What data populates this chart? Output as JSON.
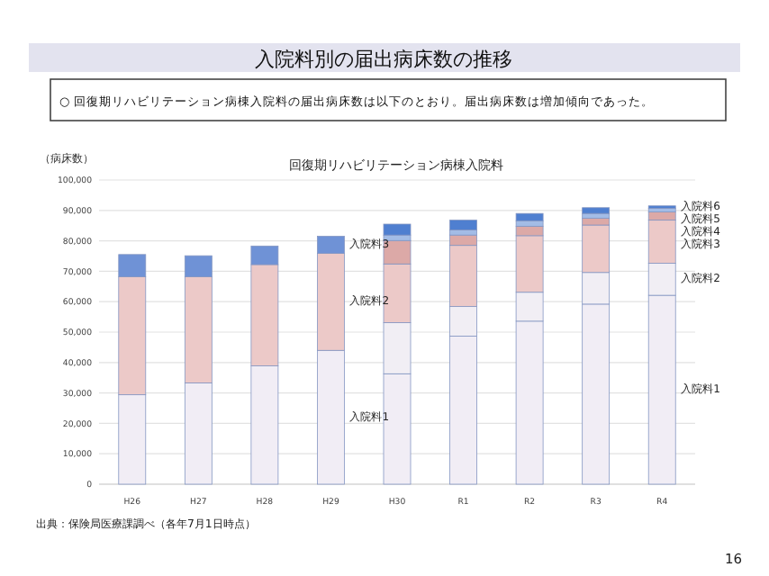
{
  "chart_data": {
    "type": "bar",
    "stacked": true,
    "title": "回復期リハビリテーション病棟入院料",
    "ylabel": "（病床数）",
    "categories": [
      "H26",
      "H27",
      "H28",
      "H29",
      "H30",
      "R1",
      "R2",
      "R3",
      "R4"
    ],
    "ylim": [
      0,
      100000
    ],
    "yticks": [
      {
        "value": 0,
        "label": "0"
      },
      {
        "value": 10000,
        "label": "10,000"
      },
      {
        "value": 20000,
        "label": "20,000"
      },
      {
        "value": 30000,
        "label": "30,000"
      },
      {
        "value": 40000,
        "label": "40,000"
      },
      {
        "value": 50000,
        "label": "50,000"
      },
      {
        "value": 60000,
        "label": "60,000"
      },
      {
        "value": 70000,
        "label": "70,000"
      },
      {
        "value": 80000,
        "label": "80,000"
      },
      {
        "value": 90000,
        "label": "90,000"
      },
      {
        "value": 100000,
        "label": "100,000"
      }
    ],
    "grid": "y",
    "series": [
      {
        "name": "入院料1",
        "color": "#f1edf5",
        "values": [
          29400,
          33300,
          38900,
          44000,
          36300,
          48700,
          53600,
          59200,
          62100
        ]
      },
      {
        "name": "入院料2",
        "colors": [
          "#ecc9c8",
          "#ecc9c8",
          "#ecc9c8",
          "#ecc9c8",
          "#f1eef4",
          "#f1eef4",
          "#f1eef4",
          "#f1eef4",
          "#f1eef4"
        ],
        "values": [
          38800,
          34900,
          33300,
          31900,
          16800,
          9700,
          9500,
          10400,
          10500
        ]
      },
      {
        "name": "入院料3",
        "colors": [
          "#6f92d6",
          "#6f92d6",
          "#6f92d6",
          "#6f92d6",
          "#ecc9c8",
          "#ecc9c8",
          "#ecc9c8",
          "#ecc9c8",
          "#ecc9c8"
        ],
        "values": [
          7300,
          6900,
          6100,
          5600,
          19300,
          20100,
          18600,
          15600,
          14200
        ]
      },
      {
        "name": "入院料4",
        "color": "#dca9a7",
        "values": [
          null,
          null,
          null,
          null,
          7700,
          3400,
          3100,
          2200,
          2700
        ]
      },
      {
        "name": "入院料5",
        "color": "#a3bce6",
        "values": [
          null,
          null,
          null,
          null,
          1800,
          1700,
          1800,
          1600,
          1200
        ]
      },
      {
        "name": "入院料6",
        "color": "#4f7fd0",
        "values": [
          null,
          null,
          null,
          null,
          3600,
          3200,
          2400,
          1900,
          800
        ]
      }
    ],
    "annotations": [
      "入院料別の届出病床数の推移",
      "○ 回復期リハビリテーション病棟入院料の届出病床数は以下のとおり。届出病床数は増加傾向であった。",
      "出典：保険局医療課調べ（各年7月1日時点）",
      "16"
    ]
  }
}
